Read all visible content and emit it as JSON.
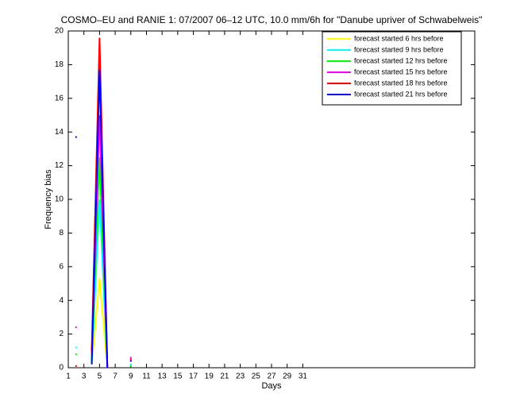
{
  "chart_data": {
    "type": "line",
    "title": "COSMO–EU and RANIE 1: 07/2007 06–12 UTC, 10.0 mm/6h for \"Danube upriver of Schwabelweis\"",
    "xlabel": "Days",
    "ylabel": "Frequency bias",
    "x": [
      2,
      3,
      4,
      5,
      6,
      7,
      8,
      9
    ],
    "series": [
      {
        "name": "forecast started 6 hrs before",
        "color": "#ffff00",
        "values": [
          null,
          null,
          0.2,
          5.3,
          0,
          null,
          null,
          null
        ]
      },
      {
        "name": "forecast started 9 hrs before",
        "color": "#00ffff",
        "values": [
          1.2,
          null,
          0.3,
          10,
          0,
          null,
          null,
          0.2
        ]
      },
      {
        "name": "forecast started 12 hrs before",
        "color": "#00ff00",
        "values": [
          0.8,
          null,
          0.5,
          12.5,
          0,
          null,
          null,
          0.1
        ]
      },
      {
        "name": "forecast started 15 hrs before",
        "color": "#ff00ff",
        "values": [
          2.4,
          null,
          0.8,
          15,
          0,
          null,
          null,
          0.6
        ]
      },
      {
        "name": "forecast started 18 hrs before",
        "color": "#ff0000",
        "values": [
          0.1,
          null,
          1.0,
          19.6,
          0,
          null,
          null,
          0.5
        ]
      },
      {
        "name": "forecast started 21 hrs before",
        "color": "#0000ff",
        "values": [
          13.7,
          null,
          0.2,
          17.7,
          0,
          null,
          null,
          0.4
        ]
      }
    ],
    "xlim": [
      1,
      53
    ],
    "ylim": [
      0,
      20
    ],
    "xticks": [
      1,
      3,
      5,
      7,
      9,
      11,
      13,
      15,
      17,
      19,
      21,
      23,
      25,
      27,
      29,
      31
    ],
    "yticks": [
      0,
      2,
      4,
      6,
      8,
      10,
      12,
      14,
      16,
      18,
      20
    ],
    "legend": "upper-right"
  }
}
